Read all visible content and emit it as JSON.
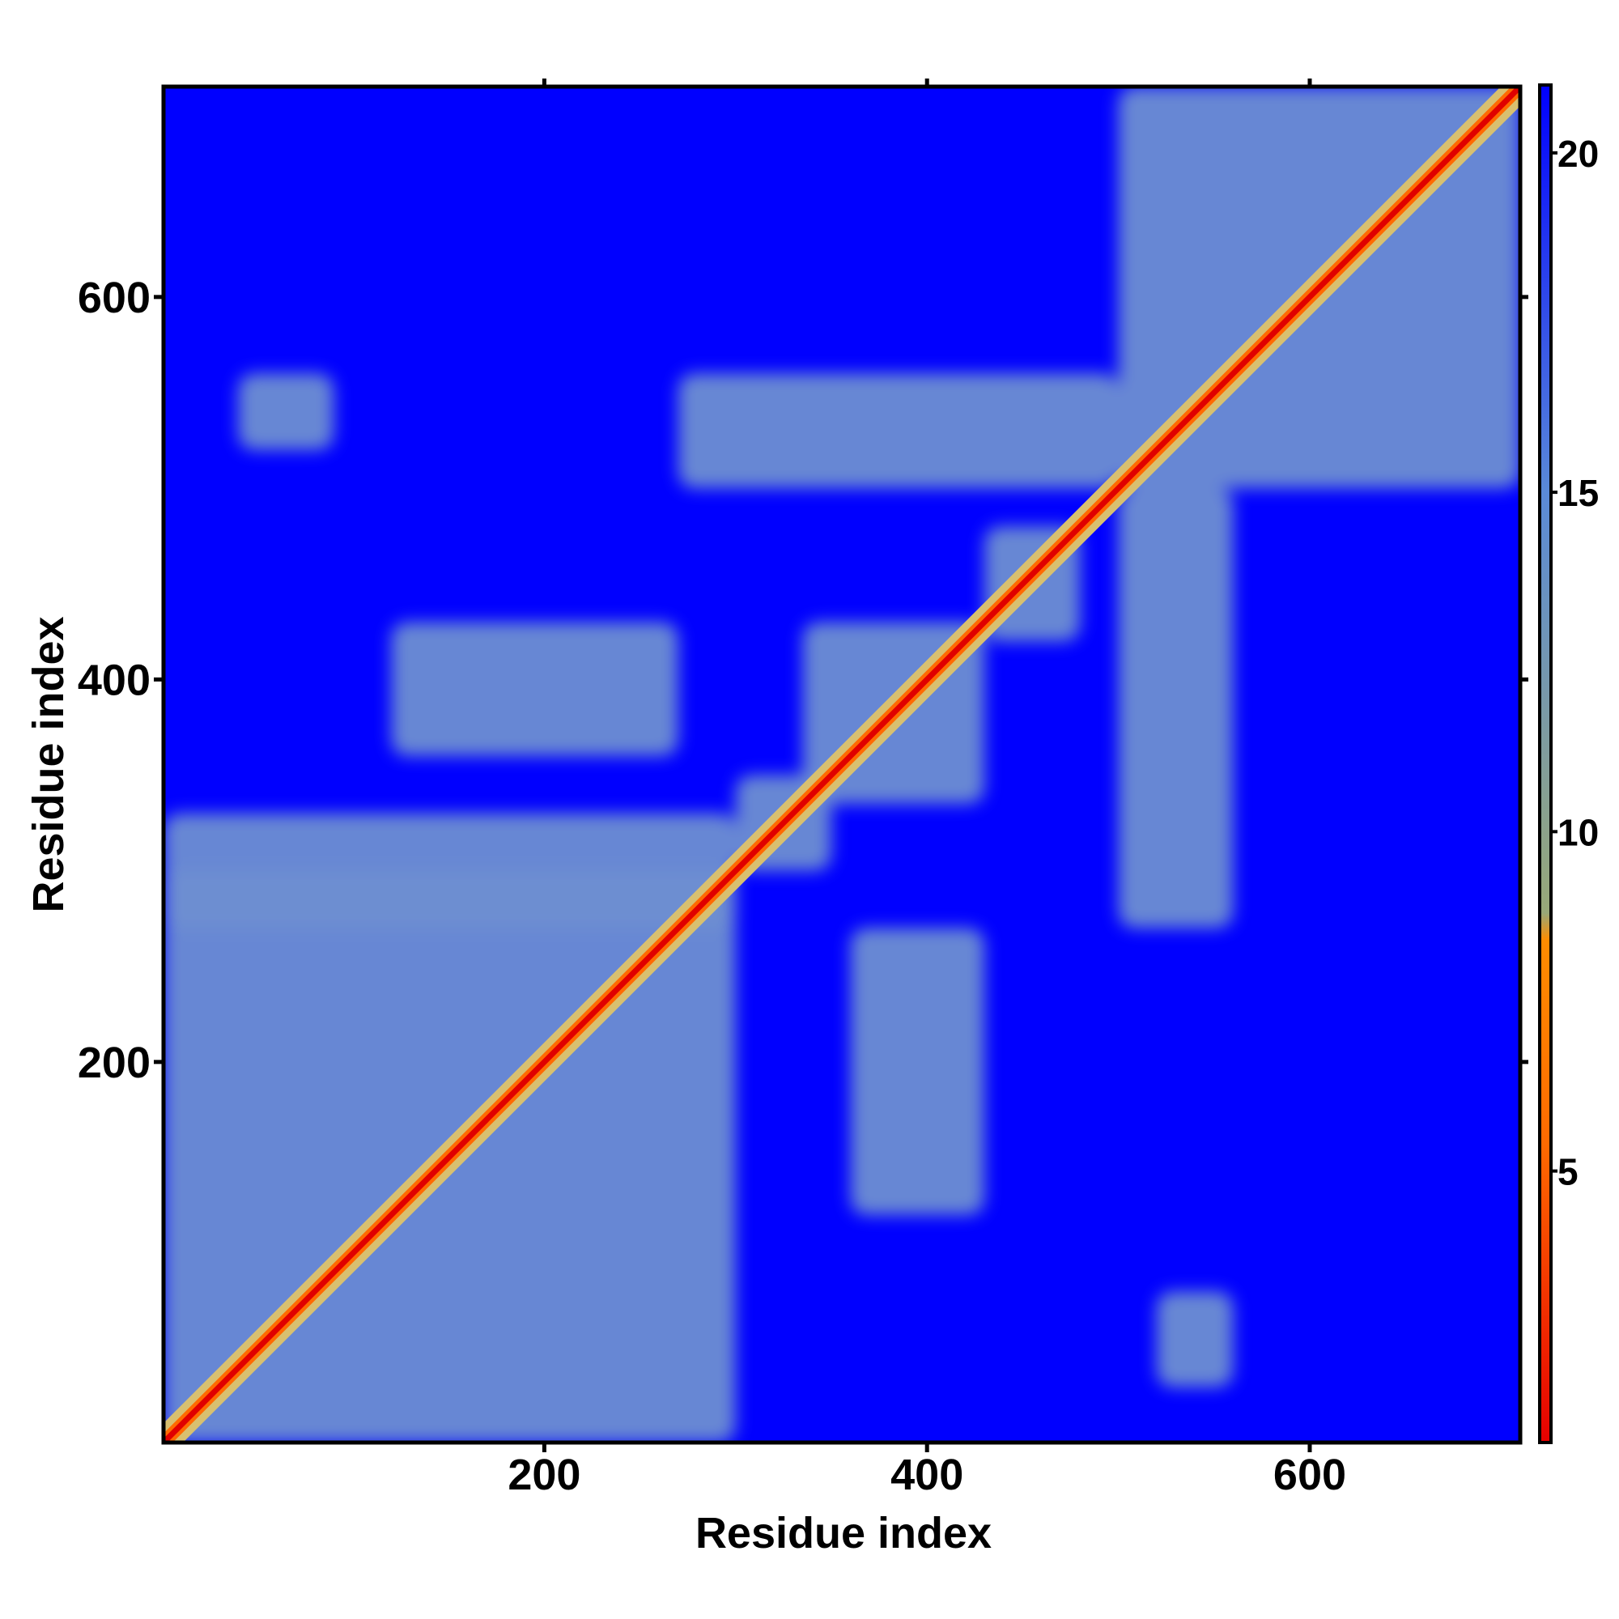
{
  "chart_data": {
    "type": "heatmap",
    "title": "",
    "xlabel": "Residue index",
    "ylabel": "Residue index",
    "xlim": [
      1,
      710
    ],
    "ylim": [
      1,
      710
    ],
    "x_ticks": [
      200,
      400,
      600
    ],
    "y_ticks": [
      200,
      400,
      600
    ],
    "x_tick_labels": [
      "200",
      "400",
      "600"
    ],
    "y_tick_labels": [
      "200",
      "400",
      "600"
    ],
    "grid": false,
    "colorbar": {
      "position": "right",
      "range": [
        1,
        21
      ],
      "ticks": [
        5,
        10,
        15,
        20
      ],
      "tick_labels": [
        "5",
        "10",
        "15",
        "20"
      ],
      "colors": [
        "#e60000",
        "#ff8c00",
        "#98a878",
        "#5a8ad8",
        "#0000ff"
      ]
    },
    "background_value": 21,
    "colors": {
      "far": "#0000ff",
      "medium": "#6e8ed2",
      "near": "#d8c070",
      "contact": "#ff6a00",
      "diagonal": "#e00000"
    },
    "contact_regions": [
      {
        "x": [
          1,
          300
        ],
        "y": [
          1,
          300
        ],
        "level": "medium"
      },
      {
        "x": [
          1,
          300
        ],
        "y": [
          270,
          330
        ],
        "level": "medium"
      },
      {
        "x": [
          300,
          350
        ],
        "y": [
          300,
          350
        ],
        "level": "medium"
      },
      {
        "x": [
          335,
          430
        ],
        "y": [
          335,
          430
        ],
        "level": "medium"
      },
      {
        "x": [
          120,
          270
        ],
        "y": [
          360,
          430
        ],
        "level": "medium"
      },
      {
        "x": [
          360,
          430
        ],
        "y": [
          120,
          270
        ],
        "level": "medium"
      },
      {
        "x": [
          500,
          710
        ],
        "y": [
          500,
          710
        ],
        "level": "medium"
      },
      {
        "x": [
          270,
          500
        ],
        "y": [
          500,
          560
        ],
        "level": "medium"
      },
      {
        "x": [
          500,
          560
        ],
        "y": [
          270,
          500
        ],
        "level": "medium"
      },
      {
        "x": [
          520,
          560
        ],
        "y": [
          30,
          80
        ],
        "level": "medium"
      },
      {
        "x": [
          40,
          90
        ],
        "y": [
          520,
          560
        ],
        "level": "medium"
      },
      {
        "x": [
          430,
          480
        ],
        "y": [
          420,
          480
        ],
        "level": "medium"
      }
    ]
  }
}
